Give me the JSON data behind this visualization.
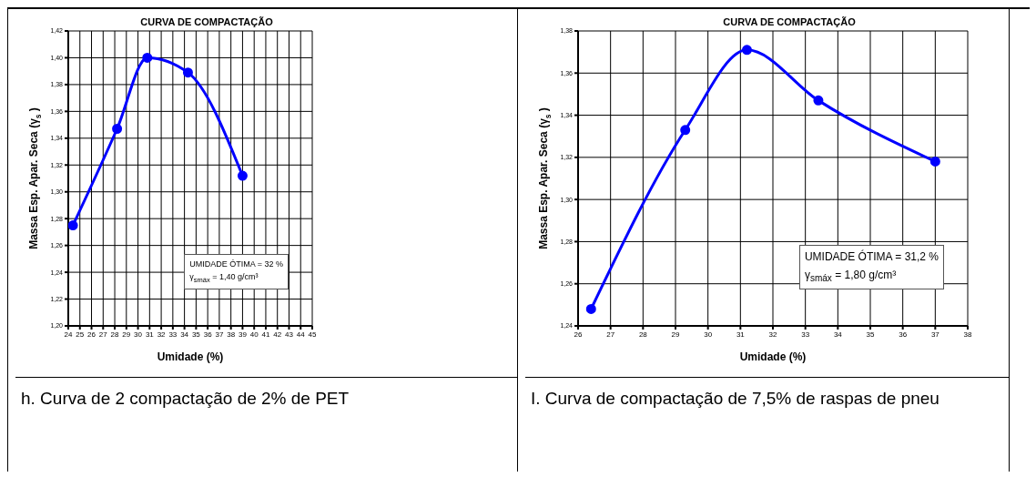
{
  "chart_data": [
    {
      "type": "line",
      "title": "CURVA DE COMPACTAÇÃO",
      "xlabel": "Umidade (%)",
      "ylabel": "Massa Esp. Apar. Seca (γ$_{s}$)",
      "series": [
        {
          "color": "#0000ff",
          "x": [
            24.4,
            28.2,
            30.8,
            34.3,
            39
          ],
          "values": [
            1.275,
            1.347,
            1.4,
            1.389,
            1.312
          ]
        }
      ],
      "xlim": [
        24,
        45
      ],
      "xticks": [
        24,
        25,
        26,
        27,
        28,
        29,
        30,
        31,
        32,
        33,
        34,
        35,
        36,
        37,
        38,
        39,
        40,
        41,
        42,
        43,
        44,
        45
      ],
      "ylim": [
        1.2,
        1.42
      ],
      "yticks": [
        {
          "value": 1.2,
          "label": "1,20"
        },
        {
          "value": 1.22,
          "label": "1,22"
        },
        {
          "value": 1.24,
          "label": "1,24"
        },
        {
          "value": 1.26,
          "label": "1,26"
        },
        {
          "value": 1.28,
          "label": "1,28"
        },
        {
          "value": 1.3,
          "label": "1,30"
        },
        {
          "value": 1.32,
          "label": "1,32"
        },
        {
          "value": 1.34,
          "label": "1,34"
        },
        {
          "value": 1.36,
          "label": "1,36"
        },
        {
          "value": 1.38,
          "label": "1,38"
        },
        {
          "value": 1.4,
          "label": "1,40"
        },
        {
          "value": 1.42,
          "label": "1,42"
        }
      ],
      "grid": true,
      "marker": "circle",
      "line_style": "solid",
      "annotations": [
        "UMIDADE ÓTIMA = 32 %",
        "γ$_{smáx}$ =  1,40  g/cm³",
        "h. Curva de 2 compactação de 2% de PET"
      ]
    },
    {
      "type": "line",
      "title": "CURVA DE COMPACTAÇÃO",
      "xlabel": "Umidade (%)",
      "ylabel": "Massa Esp. Apar. Seca (γ$_{s}$)",
      "series": [
        {
          "color": "#0000ff",
          "x": [
            26.4,
            29.3,
            31.2,
            33.4,
            37
          ],
          "values": [
            1.248,
            1.333,
            1.371,
            1.347,
            1.318
          ]
        }
      ],
      "xlim": [
        26,
        38
      ],
      "xticks": [
        26,
        27,
        28,
        29,
        30,
        31,
        32,
        33,
        34,
        35,
        36,
        37,
        38
      ],
      "ylim": [
        1.24,
        1.38
      ],
      "yticks": [
        {
          "value": 1.24,
          "label": "1,24"
        },
        {
          "value": 1.26,
          "label": "1,26"
        },
        {
          "value": 1.28,
          "label": "1,28"
        },
        {
          "value": 1.3,
          "label": "1,30"
        },
        {
          "value": 1.32,
          "label": "1,32"
        },
        {
          "value": 1.34,
          "label": "1,34"
        },
        {
          "value": 1.36,
          "label": "1,36"
        },
        {
          "value": 1.38,
          "label": "1,38"
        }
      ],
      "grid": true,
      "marker": "circle",
      "line_style": "solid",
      "annotations": [
        "UMIDADE ÓTIMA = 31,2  %",
        "γ$_{smáx}$ =    1,80   g/cm³",
        "I. Curva de compactação de 7,5% de raspas de pneu"
      ]
    }
  ]
}
